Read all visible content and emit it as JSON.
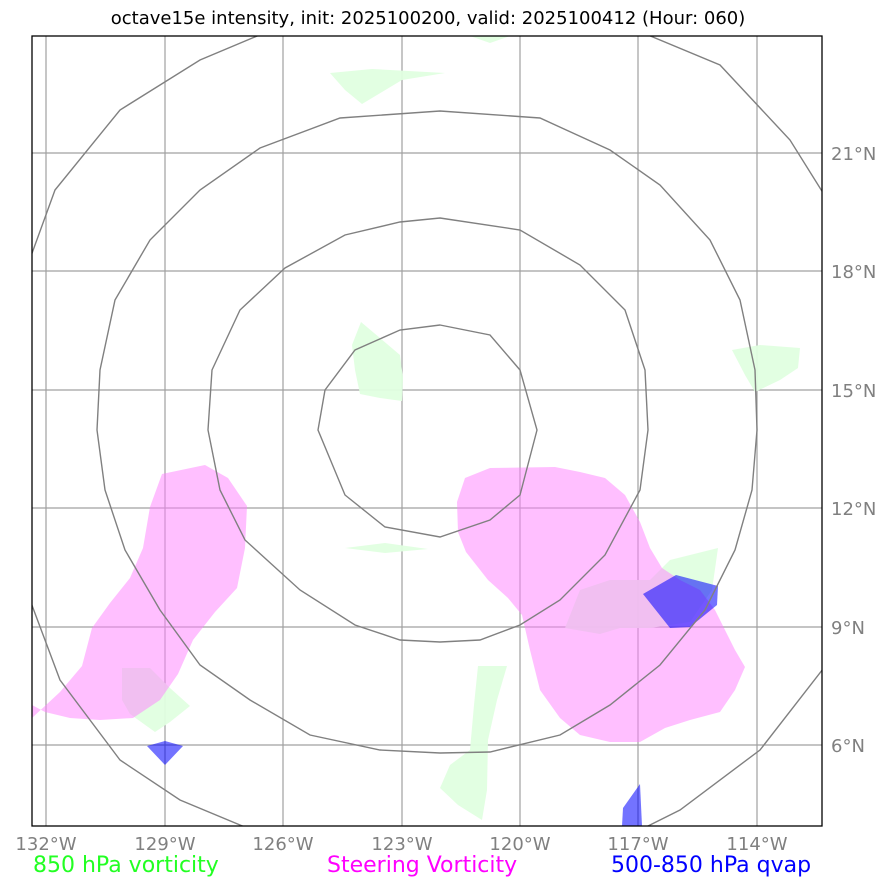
{
  "title": "octave15e intensity, init: 2025100200, valid: 2025100412 (Hour: 060)",
  "axes": {
    "lon_labels": [
      "132°W",
      "129°W",
      "126°W",
      "123°W",
      "120°W",
      "117°W",
      "114°W"
    ],
    "lat_labels": [
      "21°N",
      "18°N",
      "15°N",
      "12°N",
      "9°N",
      "6°N"
    ]
  },
  "legend": {
    "green": {
      "label": "850 hPa vorticity",
      "color": "#22ff22"
    },
    "magenta": {
      "label": "Steering Vorticity",
      "color": "#ff00ff"
    },
    "blue": {
      "label": "500-850 hPa qvap",
      "color": "#0000ff"
    }
  },
  "colors": {
    "grid": "#a0a0a0",
    "range_rings": "#808080",
    "vorticity_850_fill": "#e0ffe0",
    "steering_fill": "#ffbfff",
    "qvap_fill": "#5a5af5",
    "overlap_fill": "#7a3cf5"
  }
}
